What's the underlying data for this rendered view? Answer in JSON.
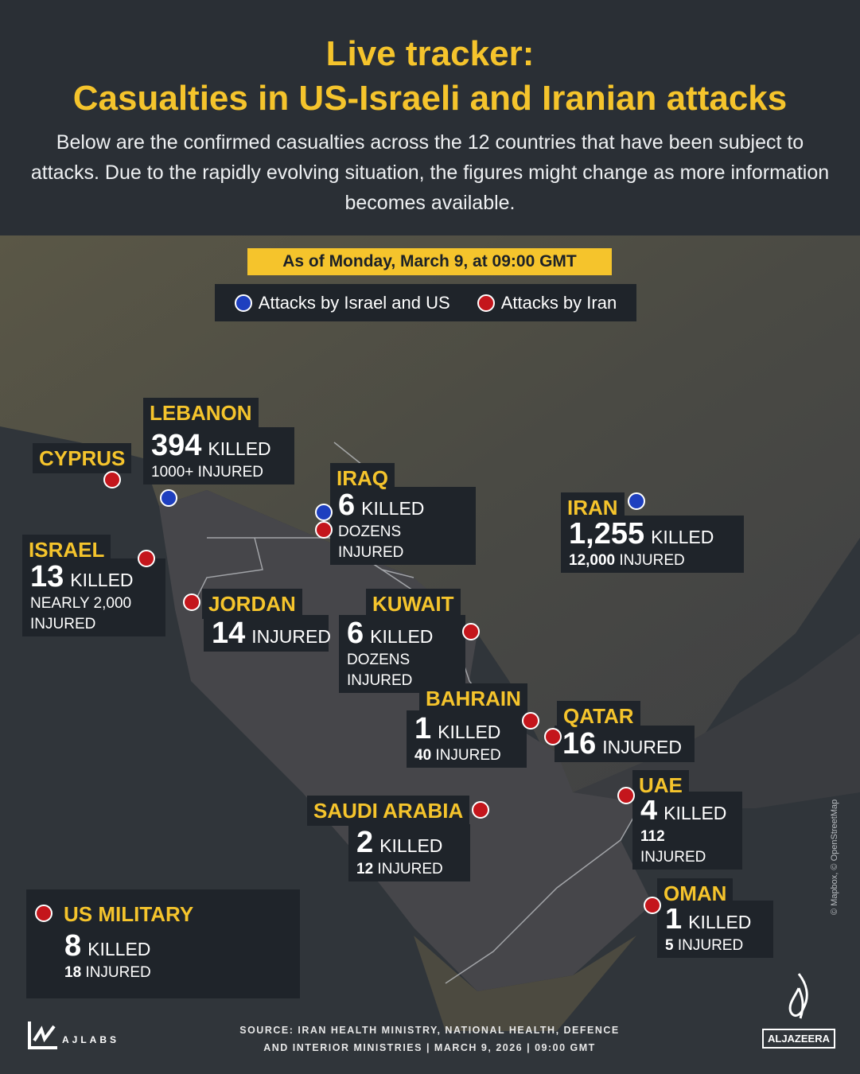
{
  "header": {
    "title_line1": "Live tracker:",
    "title_line2": "Casualties in US-Israeli and Iranian attacks",
    "subtitle": "Below are the confirmed casualties across the 12 countries that have been subject to attacks. Due to the rapidly evolving situation, the figures might change as more information becomes available."
  },
  "date_banner": "As of Monday, March 9, at 09:00 GMT",
  "legend": {
    "israel_us": "Attacks by Israel and US",
    "iran": "Attacks by Iran"
  },
  "colors": {
    "accent": "#f5c42c",
    "israel_us": "#1e3fbf",
    "iran": "#c4161c",
    "panel": "#1f242a"
  },
  "countries": [
    {
      "id": "cyprus",
      "name": "CYPRUS",
      "dots": [
        "iran"
      ]
    },
    {
      "id": "lebanon",
      "name": "LEBANON",
      "figure": "394",
      "figure_label": "KILLED",
      "secondary": "1000+ INJURED",
      "dots": [
        "israel_us"
      ]
    },
    {
      "id": "iraq",
      "name": "IRAQ",
      "figure": "6",
      "figure_label": "KILLED",
      "secondary": "DOZENS INJURED",
      "dots": [
        "israel_us",
        "iran"
      ]
    },
    {
      "id": "iran",
      "name": "IRAN",
      "figure": "1,255",
      "figure_label": "KILLED",
      "secondary_number": "12,000",
      "secondary": "INJURED",
      "dots": [
        "israel_us"
      ]
    },
    {
      "id": "israel",
      "name": "ISRAEL",
      "figure": "13",
      "figure_label": "KILLED",
      "secondary": "NEARLY 2,000 INJURED",
      "dots": [
        "iran"
      ]
    },
    {
      "id": "jordan",
      "name": "JORDAN",
      "figure": "14",
      "figure_label": "INJURED",
      "dots": [
        "iran"
      ]
    },
    {
      "id": "kuwait",
      "name": "KUWAIT",
      "figure": "6",
      "figure_label": "KILLED",
      "secondary": "DOZENS INJURED",
      "dots": [
        "iran"
      ]
    },
    {
      "id": "bahrain",
      "name": "BAHRAIN",
      "figure": "1",
      "figure_label": "KILLED",
      "secondary_number": "40",
      "secondary": "INJURED",
      "dots": [
        "iran"
      ]
    },
    {
      "id": "qatar",
      "name": "QATAR",
      "figure": "16",
      "figure_label": "INJURED",
      "dots": [
        "iran"
      ]
    },
    {
      "id": "uae",
      "name": "UAE",
      "figure": "4",
      "figure_label": "KILLED",
      "secondary_number": "112",
      "secondary": "INJURED",
      "dots": [
        "iran"
      ]
    },
    {
      "id": "saudi-arabia",
      "name": "SAUDI ARABIA",
      "figure": "2",
      "figure_label": "KILLED",
      "secondary_number": "12",
      "secondary": "INJURED",
      "dots": [
        "iran"
      ]
    },
    {
      "id": "oman",
      "name": "OMAN",
      "figure": "1",
      "figure_label": "KILLED",
      "secondary_number": "5",
      "secondary": "INJURED",
      "dots": [
        "iran"
      ]
    },
    {
      "id": "us-military",
      "name": "US MILITARY",
      "figure": "8",
      "figure_label": "KILLED",
      "secondary_number": "18",
      "secondary": "INJURED",
      "dots": [
        "iran"
      ]
    }
  ],
  "map_credit": "© Mapbox, © OpenStreetMap",
  "footer": {
    "source_line1": "SOURCE:  IRAN HEALTH MINISTRY, NATIONAL HEALTH, DEFENCE",
    "source_line2": "AND INTERIOR MINISTRIES   |  MARCH 9, 2026  |  09:00 GMT",
    "ajlabs": "AJLABS",
    "aljazeera": "ALJAZEERA"
  }
}
